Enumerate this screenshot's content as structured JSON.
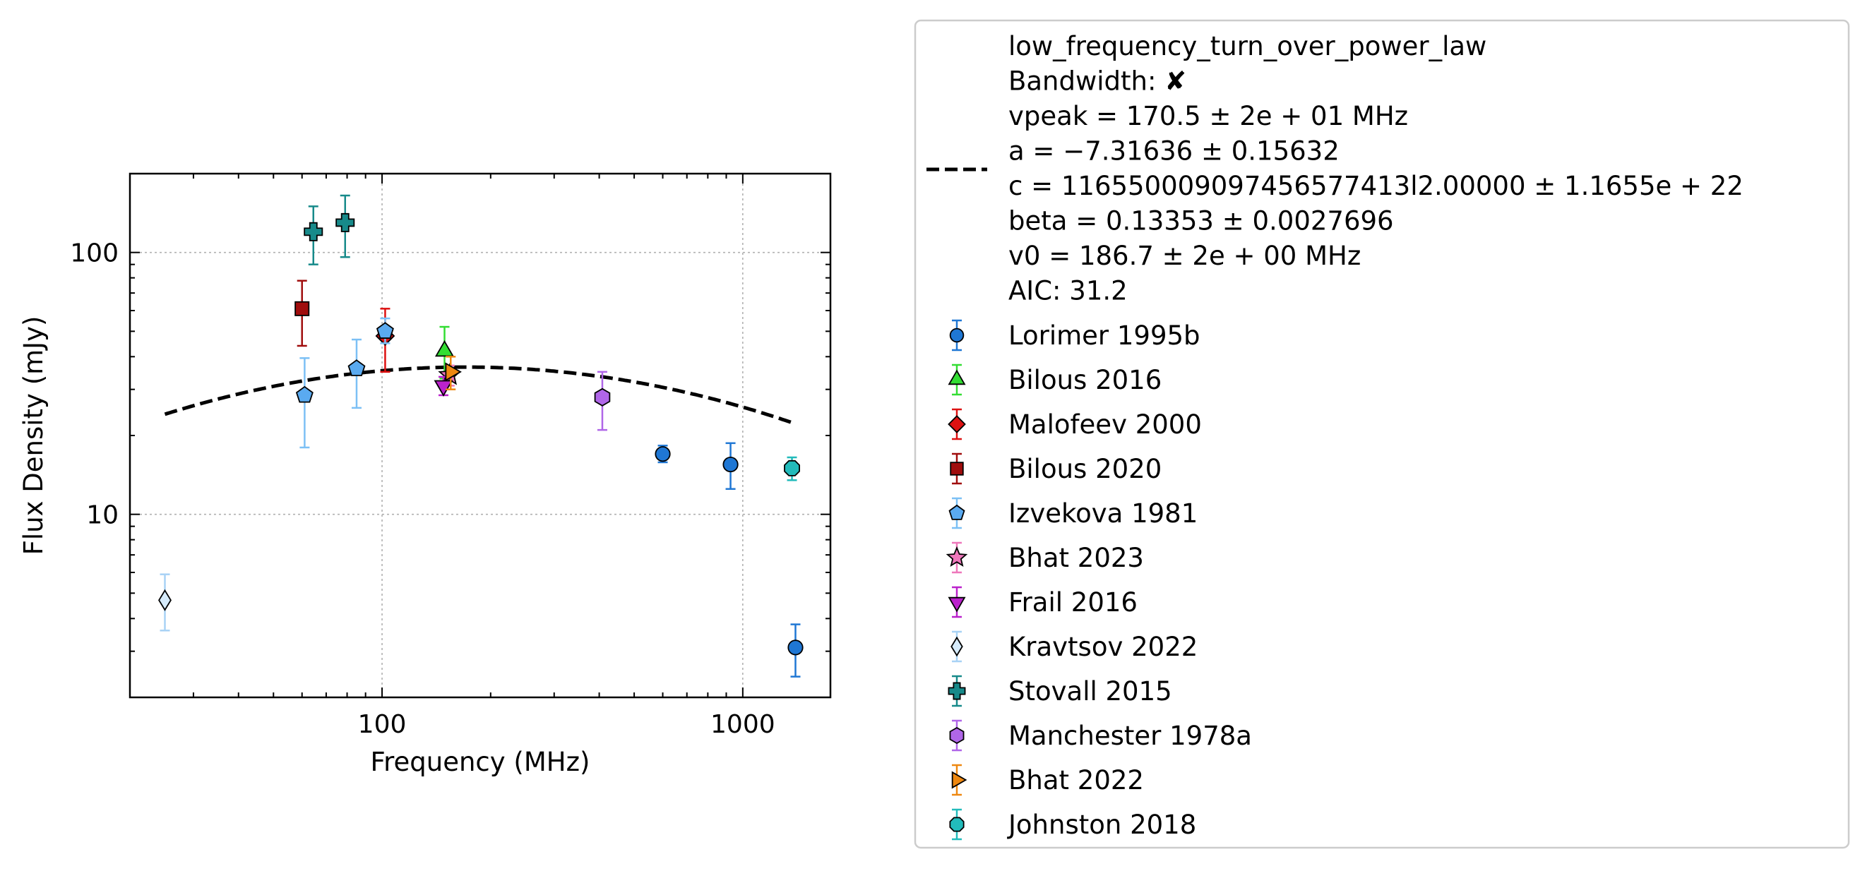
{
  "chart_data": {
    "type": "scatter",
    "xlabel": "Frequency (MHz)",
    "ylabel": "Flux Density (mJy)",
    "xscale": "log",
    "yscale": "log",
    "xlim": [
      20,
      1750
    ],
    "ylim": [
      2,
      200
    ],
    "grid": "major dotted",
    "legend_placement": "outside right",
    "x_tick_labels": [
      {
        "value": 100,
        "label": "100"
      },
      {
        "value": 1000,
        "label": "1000"
      }
    ],
    "y_tick_labels": [
      {
        "value": 10,
        "label": "10"
      },
      {
        "value": 100,
        "label": "100"
      }
    ],
    "fit": {
      "name": "low_frequency_turn_over_power_law",
      "legend_lines": [
        "low_frequency_turn_over_power_law",
        "Bandwidth: ✘",
        "vpeak = 170.5 ± 2e + 01 MHz",
        "a = −7.31636 ± 0.15632",
        "c = 116550009097456577413l2.00000 ± 1.1655e + 22",
        "beta = 0.13353 ± 0.0027696",
        "v0 = 186.7 ± 2e + 00 MHz",
        "AIC: 31.2"
      ],
      "peak_freq": 170.5,
      "peak_flux": 36.5,
      "curvature": 0.1125,
      "x_range": [
        25,
        1400
      ],
      "color": "#000000"
    },
    "series": [
      {
        "name": "Lorimer 1995b",
        "marker": "circle",
        "color": "#1f77d4",
        "ecolor": "#1f77d4",
        "points": [
          {
            "x": 600,
            "y": 17.0,
            "lo": 15.8,
            "hi": 18.3
          },
          {
            "x": 925,
            "y": 15.5,
            "lo": 12.5,
            "hi": 18.7
          },
          {
            "x": 1400,
            "y": 3.1,
            "lo": 2.4,
            "hi": 3.8
          }
        ]
      },
      {
        "name": "Bilous 2016",
        "marker": "triangle-up",
        "color": "#33dd33",
        "ecolor": "#33dd33",
        "points": [
          {
            "x": 149,
            "y": 42,
            "lo": 33,
            "hi": 52
          }
        ]
      },
      {
        "name": "Malofeev 2000",
        "marker": "diamond",
        "color": "#dd1111",
        "ecolor": "#dd1111",
        "points": [
          {
            "x": 102,
            "y": 48,
            "lo": 35,
            "hi": 61
          }
        ]
      },
      {
        "name": "Bilous 2020",
        "marker": "square",
        "color": "#a00d0d",
        "ecolor": "#a00d0d",
        "points": [
          {
            "x": 60,
            "y": 61,
            "lo": 44,
            "hi": 78
          }
        ]
      },
      {
        "name": "Izvekova 1981",
        "marker": "pentagon",
        "color": "#5aaaf0",
        "ecolor": "#7cc0f5",
        "points": [
          {
            "x": 61,
            "y": 28.5,
            "lo": 18,
            "hi": 39.5
          },
          {
            "x": 85,
            "y": 36,
            "lo": 25.5,
            "hi": 46.5
          },
          {
            "x": 102,
            "y": 50,
            "lo": 45,
            "hi": 56
          }
        ]
      },
      {
        "name": "Bhat 2023",
        "marker": "star",
        "color": "#ee77bb",
        "ecolor": "#ee77bb",
        "points": [
          {
            "x": 154,
            "y": 34,
            "lo": 31,
            "hi": 37
          }
        ]
      },
      {
        "name": "Frail 2016",
        "marker": "triangle-down",
        "color": "#bb22cc",
        "ecolor": "#bb22cc",
        "points": [
          {
            "x": 148,
            "y": 31,
            "lo": 28.5,
            "hi": 33.5
          }
        ]
      },
      {
        "name": "Kravtsov 2022",
        "marker": "thin-diamond",
        "color": "#d6ebfb",
        "ecolor": "#a8d2f5",
        "points": [
          {
            "x": 25,
            "y": 4.7,
            "lo": 3.6,
            "hi": 5.9
          }
        ]
      },
      {
        "name": "Stovall 2015",
        "marker": "plus",
        "color": "#178a8a",
        "ecolor": "#178a8a",
        "points": [
          {
            "x": 64.5,
            "y": 120,
            "lo": 90,
            "hi": 150
          },
          {
            "x": 79,
            "y": 130,
            "lo": 96,
            "hi": 165
          }
        ]
      },
      {
        "name": "Manchester 1978a",
        "marker": "hexagon",
        "color": "#b066e8",
        "ecolor": "#b066e8",
        "points": [
          {
            "x": 408,
            "y": 28,
            "lo": 21,
            "hi": 35
          }
        ]
      },
      {
        "name": "Bhat 2022",
        "marker": "triangle-right",
        "color": "#ee8811",
        "ecolor": "#ee8811",
        "points": [
          {
            "x": 155,
            "y": 35,
            "lo": 30,
            "hi": 40
          }
        ]
      },
      {
        "name": "Johnston 2018",
        "marker": "octagon",
        "color": "#22bbbb",
        "ecolor": "#22bbbb",
        "points": [
          {
            "x": 1369,
            "y": 15,
            "lo": 13.5,
            "hi": 16.5
          }
        ]
      }
    ]
  }
}
